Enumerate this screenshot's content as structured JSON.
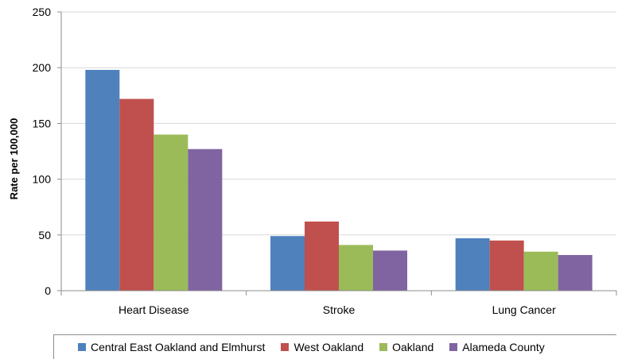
{
  "chart_data": {
    "type": "bar",
    "title": "",
    "xlabel": "",
    "ylabel": "Rate per 100,000",
    "ylim": [
      0,
      250
    ],
    "yticks": [
      0,
      50,
      100,
      150,
      200,
      250
    ],
    "grid": true,
    "legend_position": "bottom",
    "categories": [
      "Heart Disease",
      "Stroke",
      "Lung Cancer"
    ],
    "series": [
      {
        "name": "Central East Oakland and Elmhurst",
        "color": "#4f81bd",
        "values": [
          198,
          49,
          47
        ]
      },
      {
        "name": "West Oakland",
        "color": "#c0504d",
        "values": [
          172,
          62,
          45
        ]
      },
      {
        "name": "Oakland",
        "color": "#9bbb59",
        "values": [
          140,
          41,
          35
        ]
      },
      {
        "name": "Alameda County",
        "color": "#8064a2",
        "values": [
          127,
          36,
          32
        ]
      }
    ]
  }
}
